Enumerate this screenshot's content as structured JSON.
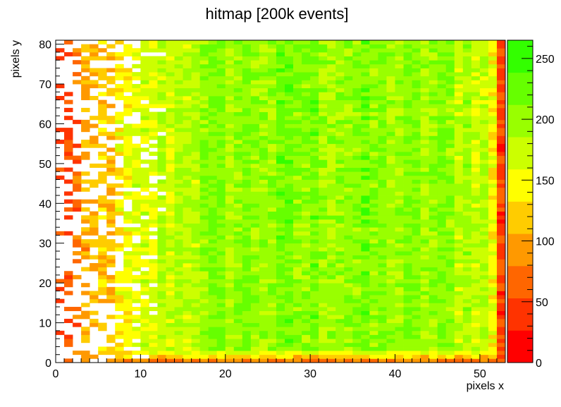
{
  "chart_data": {
    "type": "heatmap",
    "title": "hitmap [200k events]",
    "xlabel": "pixels x",
    "ylabel": "pixels y",
    "xlim": [
      0,
      53
    ],
    "ylim": [
      0,
      81
    ],
    "x_bins": 53,
    "y_bins": 81,
    "x_ticks": [
      0,
      10,
      20,
      30,
      40,
      50
    ],
    "y_ticks": [
      0,
      10,
      20,
      30,
      40,
      50,
      60,
      70,
      80
    ],
    "z_range": [
      0,
      265
    ],
    "colorbar_ticks": [
      0,
      50,
      100,
      150,
      200,
      250
    ],
    "palette": [
      "#ff0000",
      "#ff3300",
      "#ff6600",
      "#ff9900",
      "#ffcc00",
      "#ffff00",
      "#ccff00",
      "#99ff00",
      "#66ff00",
      "#33ff00"
    ],
    "column_mean_counts": [
      40,
      55,
      70,
      85,
      100,
      112,
      122,
      132,
      142,
      150,
      158,
      165,
      172,
      178,
      184,
      188,
      192,
      195,
      198,
      200,
      202,
      203,
      204,
      205,
      205,
      206,
      206,
      206,
      206,
      206,
      206,
      206,
      205,
      205,
      205,
      204,
      204,
      203,
      203,
      202,
      202,
      201,
      200,
      199,
      198,
      196,
      194,
      191,
      188,
      185,
      175,
      150,
      40
    ],
    "row_edge_falloff_counts": {
      "y_0": 80,
      "y_1": 120,
      "y_2": 160
    }
  }
}
